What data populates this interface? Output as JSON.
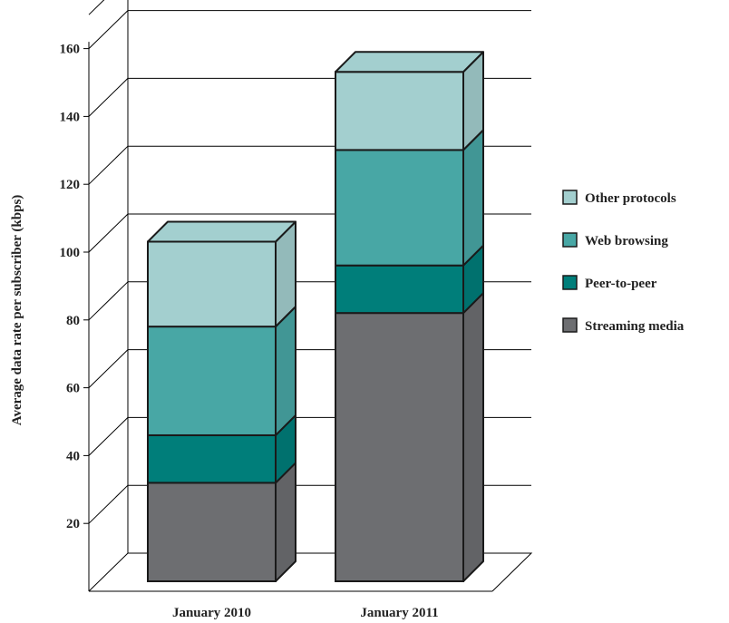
{
  "chart_data": {
    "type": "bar",
    "stacked": true,
    "three_d": true,
    "categories": [
      "January 2010",
      "January 2011"
    ],
    "series": [
      {
        "name": "Streaming media",
        "values": [
          29,
          79
        ],
        "color": "#6d6e71"
      },
      {
        "name": "Peer-to-peer",
        "values": [
          14,
          14
        ],
        "color": "#007e7a"
      },
      {
        "name": "Web browsing",
        "values": [
          32,
          34
        ],
        "color": "#48a7a5"
      },
      {
        "name": "Other protocols",
        "values": [
          25,
          23
        ],
        "color": "#a3cfcf"
      }
    ],
    "ylabel": "Average data rate per subscriber (kbps)",
    "xlabel": "",
    "title": "",
    "ylim": [
      0,
      170
    ],
    "yticks": [
      20,
      40,
      60,
      80,
      100,
      120,
      140,
      160
    ],
    "grid": true,
    "legend_position": "right",
    "legend_order": [
      "Other protocols",
      "Web browsing",
      "Peer-to-peer",
      "Streaming media"
    ]
  }
}
